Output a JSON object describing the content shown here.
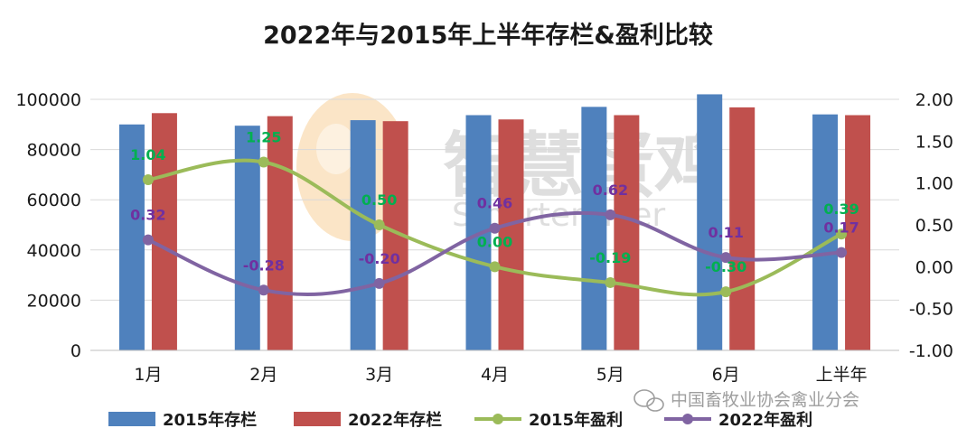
{
  "chart_data": {
    "type": "bar",
    "title": "2022年与2015年上半年存栏&盈利比较",
    "categories": [
      "1月",
      "2月",
      "3月",
      "4月",
      "5月",
      "6月",
      "上半年"
    ],
    "y_left": {
      "ticks": [
        "0",
        "20000",
        "40000",
        "60000",
        "80000",
        "100000"
      ],
      "ylim": [
        0,
        100000
      ]
    },
    "y_right": {
      "ticks": [
        "-1.00",
        "-0.50",
        "0.00",
        "0.50",
        "1.00",
        "1.50",
        "2.00"
      ],
      "ylim": [
        -1.0,
        2.0
      ]
    },
    "series": [
      {
        "name": "2015年存栏",
        "type": "bar",
        "axis": "left",
        "color": "#4F81BD",
        "values": [
          90000,
          89500,
          91700,
          93700,
          97000,
          102000,
          94000
        ]
      },
      {
        "name": "2022年存栏",
        "type": "bar",
        "axis": "left",
        "color": "#C0504D",
        "values": [
          94500,
          93300,
          91300,
          92000,
          93700,
          96800,
          93700
        ]
      },
      {
        "name": "2015年盈利",
        "type": "line",
        "axis": "right",
        "color": "#9BBB59",
        "label_color": "#00B050",
        "values": [
          1.04,
          1.25,
          0.5,
          0.0,
          -0.19,
          -0.3,
          0.39
        ],
        "labels": [
          "1.04",
          "1.25",
          "0.50",
          "0.00",
          "-0.19",
          "-0.30",
          "0.39"
        ]
      },
      {
        "name": "2022年盈利",
        "type": "line",
        "axis": "right",
        "color": "#8064A2",
        "label_color": "#7030A0",
        "values": [
          0.32,
          -0.28,
          -0.2,
          0.46,
          0.62,
          0.11,
          0.17
        ],
        "labels": [
          "0.32",
          "-0.28",
          "-0.20",
          "0.46",
          "0.62",
          "0.11",
          "0.17"
        ]
      }
    ],
    "legend_position": "bottom",
    "grid": true
  },
  "watermark": {
    "main": "智慧蛋鸡",
    "sub": "Smarterlayer"
  },
  "credit": {
    "icon": "wechat-icon",
    "text": "中国畜牧业协会禽业分会"
  }
}
